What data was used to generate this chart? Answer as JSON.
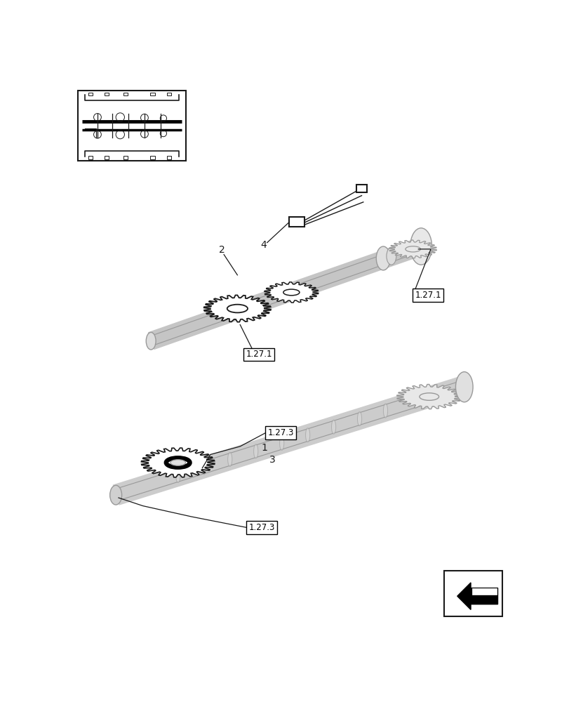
{
  "bg_color": "#ffffff",
  "line_color": "#1a1a1a",
  "gray_color": "#999999",
  "light_gray": "#bbbbbb",
  "mid_gray": "#cccccc",
  "dark_gray": "#555555",
  "labels": {
    "label_1271_right": "1.27.1",
    "label_1271_left": "1.27.1",
    "label_1273_top": "1.27.3",
    "label_1273_bot": "1.27.3",
    "num2": "2",
    "num4": "4",
    "num1": "1",
    "num3": "3"
  }
}
